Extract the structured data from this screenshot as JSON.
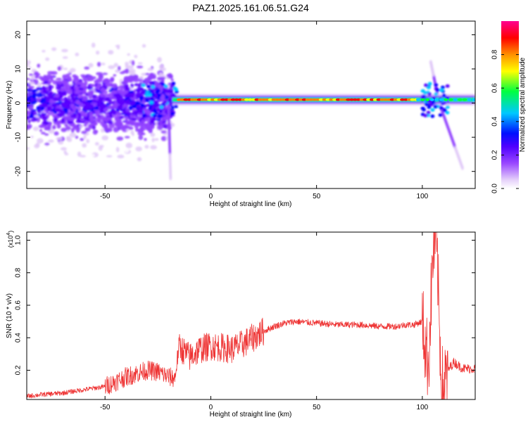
{
  "figure": {
    "title": "PAZ1.2025.161.06.51.G24"
  },
  "chart_data": [
    {
      "type": "heatmap",
      "name": "spectrogram",
      "xlabel": "Height of straight line (km)",
      "ylabel": "Frequency (Hz)",
      "xlim": [
        -87,
        125
      ],
      "ylim": [
        -25,
        24
      ],
      "x_ticks": [
        -50,
        0,
        50,
        100
      ],
      "x_tick_labels": [
        "-50",
        "0",
        "50",
        "100"
      ],
      "y_ticks": [
        -20,
        -10,
        0,
        10,
        20
      ],
      "y_tick_labels": [
        "-20",
        "-10",
        "0",
        "10",
        "20"
      ],
      "grid": false,
      "features": {
        "noise_region_x": [
          -87,
          -18
        ],
        "carrier_region_x": [
          -18,
          125
        ],
        "carrier_frequency_hz": 1,
        "tail_endpoints": [
          {
            "x": -19,
            "y": -22
          },
          {
            "x": 119,
            "y": -19
          },
          {
            "x": 104,
            "y": 12
          }
        ]
      },
      "colorbar": {
        "label": "Normalized spectral amplitude",
        "range": [
          0.0,
          1.0
        ],
        "ticks": [
          0.0,
          0.2,
          0.4,
          0.6,
          0.8
        ],
        "tick_labels": [
          "0.0",
          "0.2",
          "0.4",
          "0.6",
          "0.8"
        ],
        "colors": [
          "#ffffff",
          "#e0c8f8",
          "#9040ff",
          "#5a00ff",
          "#0000ff",
          "#00c8ff",
          "#00ff40",
          "#ffff00",
          "#ff8000",
          "#ff0000",
          "#ff00a0"
        ]
      }
    },
    {
      "type": "line",
      "name": "snr",
      "xlabel": "Height of straight line (km)",
      "ylabel": "SNR (10 * v/v)",
      "y_multiplier_label": "(x10",
      "y_multiplier_exponent": "4",
      "y_multiplier_close": ")",
      "xlim": [
        -87,
        125
      ],
      "ylim": [
        0.02,
        1.05
      ],
      "x_ticks": [
        -50,
        0,
        50,
        100
      ],
      "x_tick_labels": [
        "-50",
        "0",
        "50",
        "100"
      ],
      "y_ticks": [
        0.2,
        0.4,
        0.6,
        0.8,
        1.0
      ],
      "y_tick_labels": [
        "0.2",
        "0.4",
        "0.6",
        "0.8",
        "1.0"
      ],
      "grid": false,
      "line_color": "#ee3333",
      "series": [
        {
          "x": [
            -87,
            -80,
            -70,
            -60,
            -50,
            -45,
            -40,
            -35,
            -30,
            -25,
            -20,
            -17,
            -15,
            -13,
            -10,
            -5,
            0,
            5,
            10,
            15,
            20,
            25,
            30,
            35,
            40,
            50,
            60,
            70,
            80,
            88,
            92,
            96,
            100,
            102,
            103,
            104,
            105,
            106,
            107,
            108,
            109,
            110,
            112,
            115,
            118,
            120,
            125
          ],
          "y": [
            0.04,
            0.05,
            0.06,
            0.08,
            0.1,
            0.13,
            0.16,
            0.18,
            0.2,
            0.19,
            0.16,
            0.15,
            0.35,
            0.32,
            0.28,
            0.33,
            0.35,
            0.34,
            0.33,
            0.36,
            0.4,
            0.44,
            0.47,
            0.49,
            0.5,
            0.49,
            0.48,
            0.48,
            0.47,
            0.47,
            0.48,
            0.48,
            0.5,
            0.3,
            0.25,
            0.6,
            0.9,
            1.0,
            0.9,
            0.5,
            0.15,
            0.08,
            0.2,
            0.25,
            0.22,
            0.21,
            0.21
          ]
        }
      ]
    }
  ]
}
